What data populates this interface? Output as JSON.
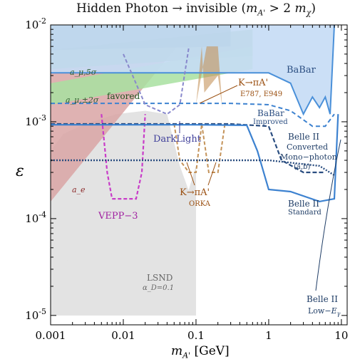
{
  "chart_data": {
    "type": "area",
    "title": "Hidden Photon → invisible (m_A' > 2 m_χ)",
    "xlabel": "m_A' [GeV]",
    "ylabel": "ε",
    "xscale": "log",
    "yscale": "log",
    "xlim": [
      0.001,
      12
    ],
    "ylim": [
      8e-06,
      0.01
    ],
    "xticks": [
      "0.001",
      "0.01",
      "0.1",
      "1",
      "10"
    ],
    "yticks": [
      "10^-5",
      "10^-4",
      "10^-3",
      "10^-2"
    ],
    "grid": false,
    "series": [
      {
        "name": "LSND",
        "sublabel": "α_D=0.1",
        "style": "filled-gray",
        "x": [
          0.001,
          0.001,
          0.0015,
          0.003,
          0.008,
          0.02,
          0.04,
          0.06,
          0.1,
          0.1
        ],
        "y": [
          1e-05,
          0.0005,
          0.00075,
          0.00095,
          0.0012,
          0.0013,
          0.0012,
          0.00035,
          0.00012,
          1e-05
        ]
      },
      {
        "name": "a_e",
        "style": "filled-red",
        "x": [
          0.001,
          0.05
        ],
        "y": [
          0.00015,
          0.0065
        ]
      },
      {
        "name": "a_μ,5σ",
        "style": "filled-green",
        "x": [
          0.001,
          0.6
        ],
        "y": [
          0.0035,
          0.0048
        ]
      },
      {
        "name": "a_μ,±2σ favored",
        "style": "filled-lightgreen",
        "x": [
          0.001,
          0.6
        ],
        "y": [
          0.0015,
          0.0035
        ]
      },
      {
        "name": "BaBar",
        "style": "filled-blue",
        "x": [
          0.001,
          0.3,
          1,
          2,
          3,
          4,
          5,
          6,
          7,
          8
        ],
        "y": [
          0.0032,
          0.0032,
          0.0032,
          0.0025,
          0.0012,
          0.0018,
          0.0014,
          0.0018,
          0.0012,
          0.01
        ]
      },
      {
        "name": "BaBar Improved",
        "style": "dashed-blue",
        "x": [
          0.001,
          0.3,
          1,
          2,
          4,
          6,
          8
        ],
        "y": [
          0.00155,
          0.00155,
          0.0015,
          0.0013,
          0.0009,
          0.0009,
          0.0012
        ]
      },
      {
        "name": "VEPP-3",
        "style": "dashed-magenta",
        "x": [
          0.005,
          0.006,
          0.007,
          0.01,
          0.015,
          0.018,
          0.02
        ],
        "y": [
          0.0012,
          0.0003,
          0.00016,
          0.00016,
          0.00016,
          0.0003,
          0.0012
        ]
      },
      {
        "name": "DarkLight",
        "style": "dashed-violet",
        "x": [
          0.01,
          0.02,
          0.04,
          0.06,
          0.08
        ],
        "y": [
          0.005,
          0.0015,
          0.0012,
          0.0015,
          0.006
        ]
      },
      {
        "name": "K→πA' E787, E949",
        "style": "filled-tan",
        "x": [
          0.1,
          0.12,
          0.2,
          0.23
        ],
        "y": [
          0.0015,
          0.005,
          0.0025,
          0.0014
        ]
      },
      {
        "name": "K→πA' ORKA",
        "style": "dashed-tan",
        "x": [
          0.05,
          0.06,
          0.08,
          0.1,
          0.12,
          0.15,
          0.2,
          0.25
        ],
        "y": [
          0.00095,
          0.0004,
          0.0003,
          0.0003,
          0.00095,
          0.0003,
          0.0003,
          0.00095
        ]
      },
      {
        "name": "Belle II Converted Mono-photon (a,b)",
        "style": "dashed-navy",
        "x": [
          0.001,
          0.3,
          1,
          1.5,
          3,
          6
        ],
        "y": [
          0.00095,
          0.00095,
          0.0009,
          0.0004,
          0.0003,
          0.0003
        ]
      },
      {
        "name": "Belle II Standard",
        "style": "solid-blue",
        "x": [
          0.001,
          0.1,
          0.5,
          0.7,
          1,
          2,
          5,
          8,
          9
        ],
        "y": [
          0.00093,
          0.00093,
          0.00092,
          0.0005,
          0.0002,
          0.00019,
          0.00015,
          0.00016,
          0.0012
        ]
      },
      {
        "name": "Belle II Low-E_γ",
        "style": "dotted-blue",
        "x": [
          0.001,
          0.3,
          1,
          5,
          8
        ],
        "y": [
          0.0004,
          0.0004,
          0.0004,
          0.00035,
          0.00028
        ]
      }
    ]
  },
  "labels": {
    "title": "Hidden Photon → invisible (m_A' > 2 m_χ)",
    "xlabel": "m_A' [GeV]",
    "ylabel": "ε",
    "babar": "BaBar",
    "babar_improved_1": "BaBar",
    "babar_improved_2": "Improved",
    "amu5": "a_μ,5σ",
    "amu2": "a_μ,±2σ",
    "favored": "favored",
    "ae": "a_e",
    "darklight": "DarkLight",
    "kpi_e787_1": "K→πA'",
    "kpi_e787_2": "E787, E949",
    "kpi_orka_1": "K→πA'",
    "kpi_orka_2": "ORKA",
    "belle_conv_1": "Belle II",
    "belle_conv_2": "Converted",
    "belle_conv_3": "Mono−photon",
    "belle_conv_4": "(a,b)",
    "belle_std_1": "Belle II",
    "belle_std_2": "Standard",
    "belle_low_1": "Belle II",
    "belle_low_2": "Low−E_γ",
    "vepp": "VEPP−3",
    "lsnd_1": "LSND",
    "lsnd_2": "α_D=0.1"
  },
  "colors": {
    "lsnd": "#e3e3e3",
    "ae": "#d9a5a5",
    "amu5": "#8fbf8f",
    "amu2": "#a8e0a0",
    "babar": "#c5dcf5",
    "babar_line": "#4a90d9",
    "vepp": "#c83cc8",
    "darklight": "#8888cc",
    "kpi": "#c4935a",
    "belle_navy": "#2a4d80",
    "belle_blue": "#3d82d0"
  }
}
